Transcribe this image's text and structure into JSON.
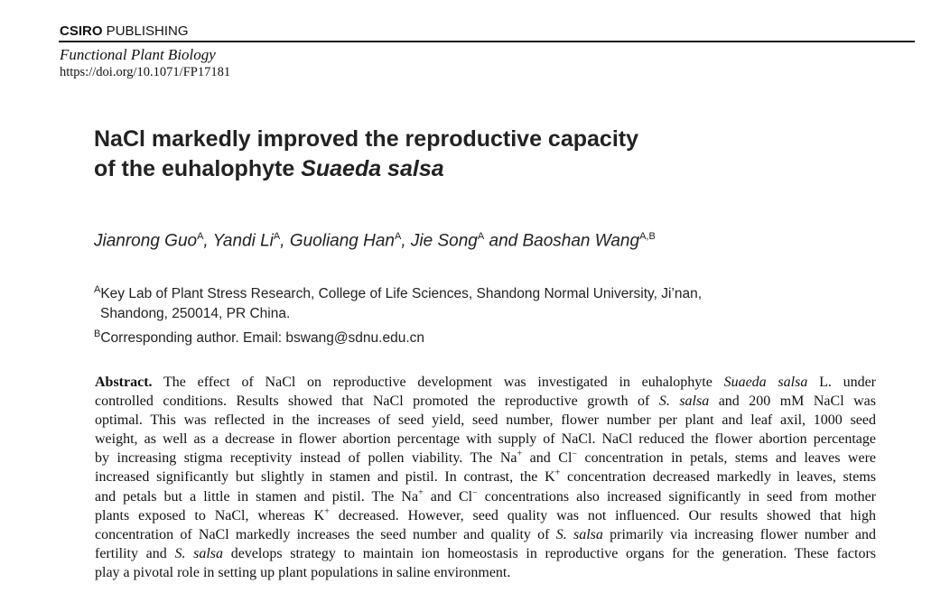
{
  "header": {
    "publisher_bold": "CSIRO",
    "publisher_rest": " PUBLISHING",
    "journal": "Functional Plant Biology",
    "doi": "https://doi.org/10.1071/FP17181"
  },
  "title": {
    "line1": "NaCl markedly improved the reproductive capacity",
    "line2_plain": "of the euhalophyte ",
    "line2_italic": "Suaeda salsa"
  },
  "authors": [
    {
      "name": "Jianrong Guo",
      "aff": "A",
      "sep": ", "
    },
    {
      "name": "Yandi Li",
      "aff": "A",
      "sep": ", "
    },
    {
      "name": "Guoliang Han",
      "aff": "A",
      "sep": ", "
    },
    {
      "name": "Jie Song",
      "aff": "A",
      "sep": " and "
    },
    {
      "name": "Baoshan Wang",
      "aff": "A,B",
      "sep": ""
    }
  ],
  "affiliations": {
    "a_mark": "A",
    "a_line1": "Key Lab of Plant Stress Research, College of Life Sciences, Shandong Normal University, Ji’nan,",
    "a_line2": "Shandong, 250014, PR China.",
    "b_mark": "B",
    "b_line": "Corresponding author. Email: bswang@sdnu.edu.cn"
  },
  "abstract": {
    "lines": [
      [
        {
          "s": "b",
          "t": "Abstract."
        },
        {
          "t": "  The effect of NaCl on reproductive development was investigated in euhalophyte "
        },
        {
          "s": "i",
          "t": "Suaeda salsa"
        },
        {
          "t": " L. under"
        }
      ],
      [
        {
          "t": "controlled conditions. Results showed that NaCl promoted the reproductive growth of "
        },
        {
          "s": "i",
          "t": "S. salsa"
        },
        {
          "t": " and 200 mM NaCl was"
        }
      ],
      [
        {
          "t": "optimal. This was reflected in the increases of seed yield, seed number, flower number per plant and leaf axil, 1000 seed"
        }
      ],
      [
        {
          "t": "weight, as well as a decrease in flower abortion percentage with supply of NaCl. NaCl reduced the flower abortion percentage"
        }
      ],
      [
        {
          "t": "by increasing stigma receptivity instead of pollen viability. The Na"
        },
        {
          "s": "sup",
          "t": "+"
        },
        {
          "t": " and Cl"
        },
        {
          "s": "sup",
          "t": "−"
        },
        {
          "t": " concentration in petals, stems and leaves were"
        }
      ],
      [
        {
          "t": "increased significantly but slightly in stamen and pistil. In contrast, the K"
        },
        {
          "s": "sup",
          "t": "+"
        },
        {
          "t": " concentration decreased markedly in leaves, stems"
        }
      ],
      [
        {
          "t": "and petals but a little in stamen and pistil. The Na"
        },
        {
          "s": "sup",
          "t": "+"
        },
        {
          "t": " and Cl"
        },
        {
          "s": "sup",
          "t": "−"
        },
        {
          "t": " concentrations also increased significantly in seed from mother"
        }
      ],
      [
        {
          "t": "plants exposed to NaCl, whereas K"
        },
        {
          "s": "sup",
          "t": "+"
        },
        {
          "t": " decreased. However, seed quality was not influenced. Our results showed that high"
        }
      ],
      [
        {
          "t": "concentration of NaCl markedly increases the seed number and quality of "
        },
        {
          "s": "i",
          "t": "S. salsa"
        },
        {
          "t": " primarily via increasing flower number and"
        }
      ],
      [
        {
          "t": "fertility and "
        },
        {
          "s": "i",
          "t": "S. salsa"
        },
        {
          "t": " develops strategy to maintain ion homeostasis in reproductive organs for the generation. These factors"
        }
      ],
      [
        {
          "t": "play a pivotal role in setting up plant populations in saline environment."
        }
      ]
    ]
  }
}
